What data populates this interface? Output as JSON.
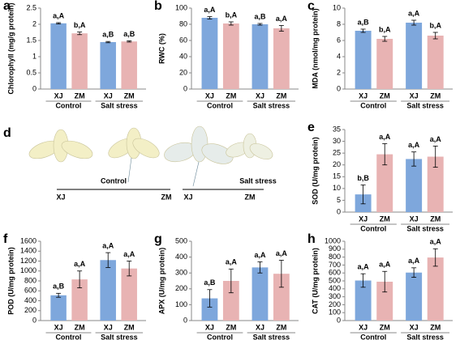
{
  "chart_data": [
    {
      "type": "bar",
      "panel": "a",
      "ylabel": "Chlorophyll (mg/g protein)",
      "categories": [
        "XJ",
        "ZM",
        "XJ",
        "ZM"
      ],
      "groups": [
        "Control",
        "Salt stress"
      ],
      "values": [
        2.03,
        1.72,
        1.45,
        1.47
      ],
      "errors": [
        0.02,
        0.04,
        0.02,
        0.02
      ],
      "value_labels": [
        "a,A",
        "b,A",
        "a,B",
        "a,B"
      ],
      "colors": [
        "#7ea7dc",
        "#e8b3b3",
        "#7ea7dc",
        "#e8b3b3"
      ],
      "ylim": [
        0,
        2.5
      ],
      "yticks": [
        0,
        0.5,
        1,
        1.5,
        2,
        2.5
      ]
    },
    {
      "type": "bar",
      "panel": "b",
      "ylabel": "RWC (%)",
      "categories": [
        "XJ",
        "ZM",
        "XJ",
        "ZM"
      ],
      "groups": [
        "Control",
        "Salt stress"
      ],
      "values": [
        88,
        81,
        80,
        75
      ],
      "errors": [
        1.5,
        2,
        1,
        3.5
      ],
      "value_labels": [
        "a,A",
        "b,A",
        "a,B",
        "a,A"
      ],
      "colors": [
        "#7ea7dc",
        "#e8b3b3",
        "#7ea7dc",
        "#e8b3b3"
      ],
      "ylim": [
        0,
        100
      ],
      "yticks": [
        0,
        20,
        40,
        60,
        80,
        100
      ]
    },
    {
      "type": "bar",
      "panel": "c",
      "ylabel": "MDA (nmol/mg protein)",
      "categories": [
        "XJ",
        "ZM",
        "XJ",
        "ZM"
      ],
      "groups": [
        "Control",
        "Salt stress"
      ],
      "values": [
        7.2,
        6.2,
        8.2,
        6.6
      ],
      "errors": [
        0.2,
        0.3,
        0.3,
        0.4
      ],
      "value_labels": [
        "a,B",
        "b,A",
        "a,A",
        "b,A"
      ],
      "colors": [
        "#7ea7dc",
        "#e8b3b3",
        "#7ea7dc",
        "#e8b3b3"
      ],
      "ylim": [
        0,
        10
      ],
      "yticks": [
        0,
        2,
        4,
        6,
        8,
        10
      ]
    },
    {
      "type": "bar",
      "panel": "e",
      "ylabel": "SOD (U/mg protein)",
      "categories": [
        "XJ",
        "ZM",
        "XJ",
        "ZM"
      ],
      "groups": [
        "Control",
        "Salt stress"
      ],
      "values": [
        7.5,
        24.5,
        22.5,
        23.5
      ],
      "errors": [
        4,
        4.5,
        3,
        4.5
      ],
      "value_labels": [
        "b,B",
        "a,A",
        "a,A",
        "a,A"
      ],
      "colors": [
        "#7ea7dc",
        "#e8b3b3",
        "#7ea7dc",
        "#e8b3b3"
      ],
      "ylim": [
        0,
        35
      ],
      "yticks": [
        0,
        5,
        10,
        15,
        20,
        25,
        30,
        35
      ]
    },
    {
      "type": "bar",
      "panel": "f",
      "ylabel": "POD (U/mg protein)",
      "categories": [
        "XJ",
        "ZM",
        "XJ",
        "ZM"
      ],
      "groups": [
        "Control",
        "Salt stress"
      ],
      "values": [
        510,
        830,
        1220,
        1050
      ],
      "errors": [
        40,
        170,
        150,
        150
      ],
      "value_labels": [
        "a,B",
        "a,A",
        "a,A",
        "a,A"
      ],
      "colors": [
        "#7ea7dc",
        "#e8b3b3",
        "#7ea7dc",
        "#e8b3b3"
      ],
      "ylim": [
        0,
        1600
      ],
      "yticks": [
        0,
        200,
        400,
        600,
        800,
        1000,
        1200,
        1400,
        1600
      ]
    },
    {
      "type": "bar",
      "panel": "g",
      "ylabel": "APX (U/mg protein)",
      "categories": [
        "XJ",
        "ZM",
        "XJ",
        "ZM"
      ],
      "groups": [
        "Control",
        "Salt stress"
      ],
      "values": [
        140,
        250,
        335,
        295
      ],
      "errors": [
        55,
        75,
        35,
        85
      ],
      "value_labels": [
        "a,B",
        "a,A",
        "a,A",
        "a,A"
      ],
      "colors": [
        "#7ea7dc",
        "#e8b3b3",
        "#7ea7dc",
        "#e8b3b3"
      ],
      "ylim": [
        0,
        500
      ],
      "yticks": [
        0,
        100,
        200,
        300,
        400,
        500
      ]
    },
    {
      "type": "bar",
      "panel": "h",
      "ylabel": "CAT (U/mg protein)",
      "categories": [
        "XJ",
        "ZM",
        "XJ",
        "ZM"
      ],
      "groups": [
        "Control",
        "Salt stress"
      ],
      "values": [
        505,
        490,
        605,
        795
      ],
      "errors": [
        85,
        130,
        60,
        110
      ],
      "value_labels": [
        "a,A",
        "a,A",
        "a,A",
        "a,A"
      ],
      "colors": [
        "#7ea7dc",
        "#e8b3b3",
        "#7ea7dc",
        "#e8b3b3"
      ],
      "ylim": [
        0,
        1000
      ],
      "yticks": [
        0,
        100,
        200,
        300,
        400,
        500,
        600,
        700,
        800,
        900,
        1000
      ]
    }
  ],
  "panel_d": {
    "panel": "d",
    "labels": [
      "XJ",
      "ZM",
      "XJ",
      "ZM"
    ],
    "groups": [
      "Control",
      "Salt stress"
    ]
  }
}
